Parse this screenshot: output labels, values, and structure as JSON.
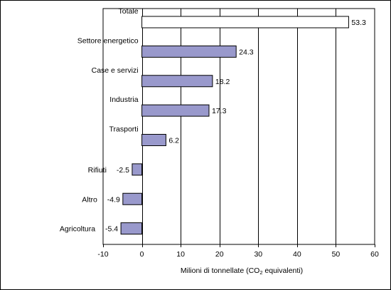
{
  "chart_data": {
    "type": "bar",
    "orientation": "horizontal",
    "categories": [
      "Totale",
      "Settore energetico",
      "Case e servizi",
      "Industria",
      "Trasporti",
      "Rifiuti",
      "Altro",
      "Agricoltura"
    ],
    "values": [
      53.3,
      24.3,
      18.2,
      17.3,
      6.2,
      -2.5,
      -4.9,
      -5.4
    ],
    "data_labels": [
      "53.3",
      "24.3",
      "18.2",
      "17.3",
      "6.2",
      "-2.5",
      "-4.9",
      "-5.4"
    ],
    "xlabel": {
      "before": "Milioni di tonnellate (CO",
      "subscript": "2",
      "after": " equivalenti)"
    },
    "xlim": [
      -10,
      60
    ],
    "xticks": [
      -10,
      0,
      10,
      20,
      30,
      40,
      50,
      60
    ],
    "grid": true,
    "colors": {
      "highlight_bar_fill": "#ffffff",
      "bar_fill": "#9999cc",
      "bar_stroke": "#000000",
      "grid": "#000000"
    },
    "highlight_index": 0
  }
}
